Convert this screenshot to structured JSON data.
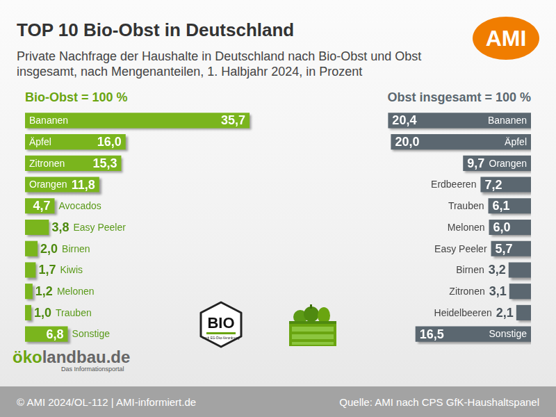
{
  "title": "TOP 10 Bio-Obst in Deutschland",
  "subtitle": "Private Nachfrage der Haushalte in Deutschland nach Bio-Obst und Obst insgesamt, nach Mengenanteilen, 1. Halbjahr 2024, in Prozent",
  "logo": "AMI",
  "chart_data": [
    {
      "type": "bar",
      "orientation": "horizontal",
      "title": "Bio-Obst = 100 %",
      "categories": [
        "Bananen",
        "Äpfel",
        "Zitronen",
        "Orangen",
        "Avocados",
        "Easy Peeler",
        "Birnen",
        "Kiwis",
        "Melonen",
        "Trauben",
        "Sonstige"
      ],
      "values": [
        35.7,
        16.0,
        15.3,
        11.8,
        4.7,
        3.8,
        2.0,
        1.7,
        1.2,
        1.0,
        6.8
      ],
      "value_labels": [
        "35,7",
        "16,0",
        "15,3",
        "11,8",
        "4,7",
        "3,8",
        "2,0",
        "1,7",
        "1,2",
        "1,0",
        "6,8"
      ],
      "color": "#7ab51d",
      "xlim": [
        0,
        40
      ],
      "grid": false,
      "tick_labels": false,
      "data_labels": true
    },
    {
      "type": "bar",
      "orientation": "horizontal",
      "title": "Obst insgesamt = 100 %",
      "categories": [
        "Bananen",
        "Äpfel",
        "Orangen",
        "Erdbeeren",
        "Trauben",
        "Melonen",
        "Easy Peeler",
        "Birnen",
        "Zitronen",
        "Heidelbeeren",
        "Sonstige"
      ],
      "values": [
        20.4,
        20.0,
        9.7,
        7.2,
        6.1,
        6.0,
        5.7,
        3.2,
        3.1,
        2.1,
        16.5
      ],
      "value_labels": [
        "20,4",
        "20,0",
        "9,7",
        "7,2",
        "6,1",
        "6,0",
        "5,7",
        "3,2",
        "3,1",
        "2,1",
        "16,5"
      ],
      "color": "#5b6770",
      "xlim": [
        0,
        25
      ],
      "grid": false,
      "tick_labels": false,
      "data_labels": true
    }
  ],
  "seal": {
    "label": "BIO",
    "caption": "nach EG-Öko-Verordnung"
  },
  "portal": {
    "name": "ökolandbau.de",
    "tagline": "Das Informationsportal"
  },
  "footer": {
    "copyright": "© AMI 2024/OL-112 | AMI-informiert.de",
    "source": "Quelle: AMI nach CPS GfK-Haushaltspanel"
  }
}
